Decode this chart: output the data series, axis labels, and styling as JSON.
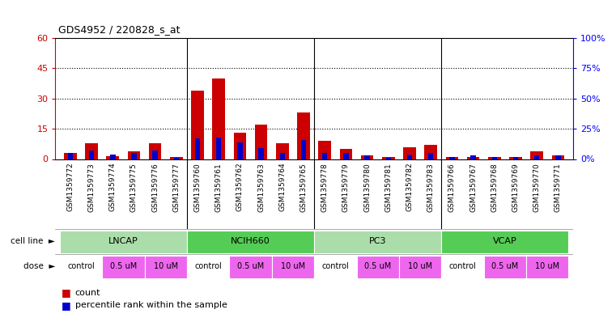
{
  "title": "GDS4952 / 220828_s_at",
  "samples": [
    "GSM1359772",
    "GSM1359773",
    "GSM1359774",
    "GSM1359775",
    "GSM1359776",
    "GSM1359777",
    "GSM1359760",
    "GSM1359761",
    "GSM1359762",
    "GSM1359763",
    "GSM1359764",
    "GSM1359765",
    "GSM1359778",
    "GSM1359779",
    "GSM1359780",
    "GSM1359781",
    "GSM1359782",
    "GSM1359783",
    "GSM1359766",
    "GSM1359767",
    "GSM1359768",
    "GSM1359769",
    "GSM1359770",
    "GSM1359771"
  ],
  "count": [
    3,
    8,
    1.5,
    4,
    8,
    1,
    34,
    40,
    13,
    17,
    8,
    23,
    9,
    5,
    2,
    1,
    6,
    7,
    1,
    1,
    1,
    1,
    4,
    2
  ],
  "percentile": [
    5,
    7,
    4,
    5,
    7,
    1,
    17,
    18,
    14,
    9,
    5,
    16,
    5,
    5,
    3,
    1,
    4,
    5,
    2,
    3,
    2,
    2,
    3,
    3
  ],
  "left_ylim": [
    0,
    60
  ],
  "right_ylim": [
    0,
    100
  ],
  "left_yticks": [
    0,
    15,
    30,
    45,
    60
  ],
  "right_yticks": [
    0,
    25,
    50,
    75,
    100
  ],
  "right_yticklabels": [
    "0%",
    "25%",
    "50%",
    "75%",
    "100%"
  ],
  "bar_color_red": "#CC0000",
  "bar_color_blue": "#0000CC",
  "left_axis_color": "#CC0000",
  "right_axis_color": "#0000FF",
  "cell_line_colors": [
    "#AADDAA",
    "#55CC55",
    "#AADDAA",
    "#55CC55"
  ],
  "cell_line_names": [
    "LNCAP",
    "NCIH660",
    "PC3",
    "VCAP"
  ],
  "dose_labels": [
    "control",
    "0.5 uM",
    "10 uM"
  ],
  "dose_color_control": "#ffffff",
  "dose_color_um": "#EE66EE",
  "gray_bg": "#C8C8C8"
}
